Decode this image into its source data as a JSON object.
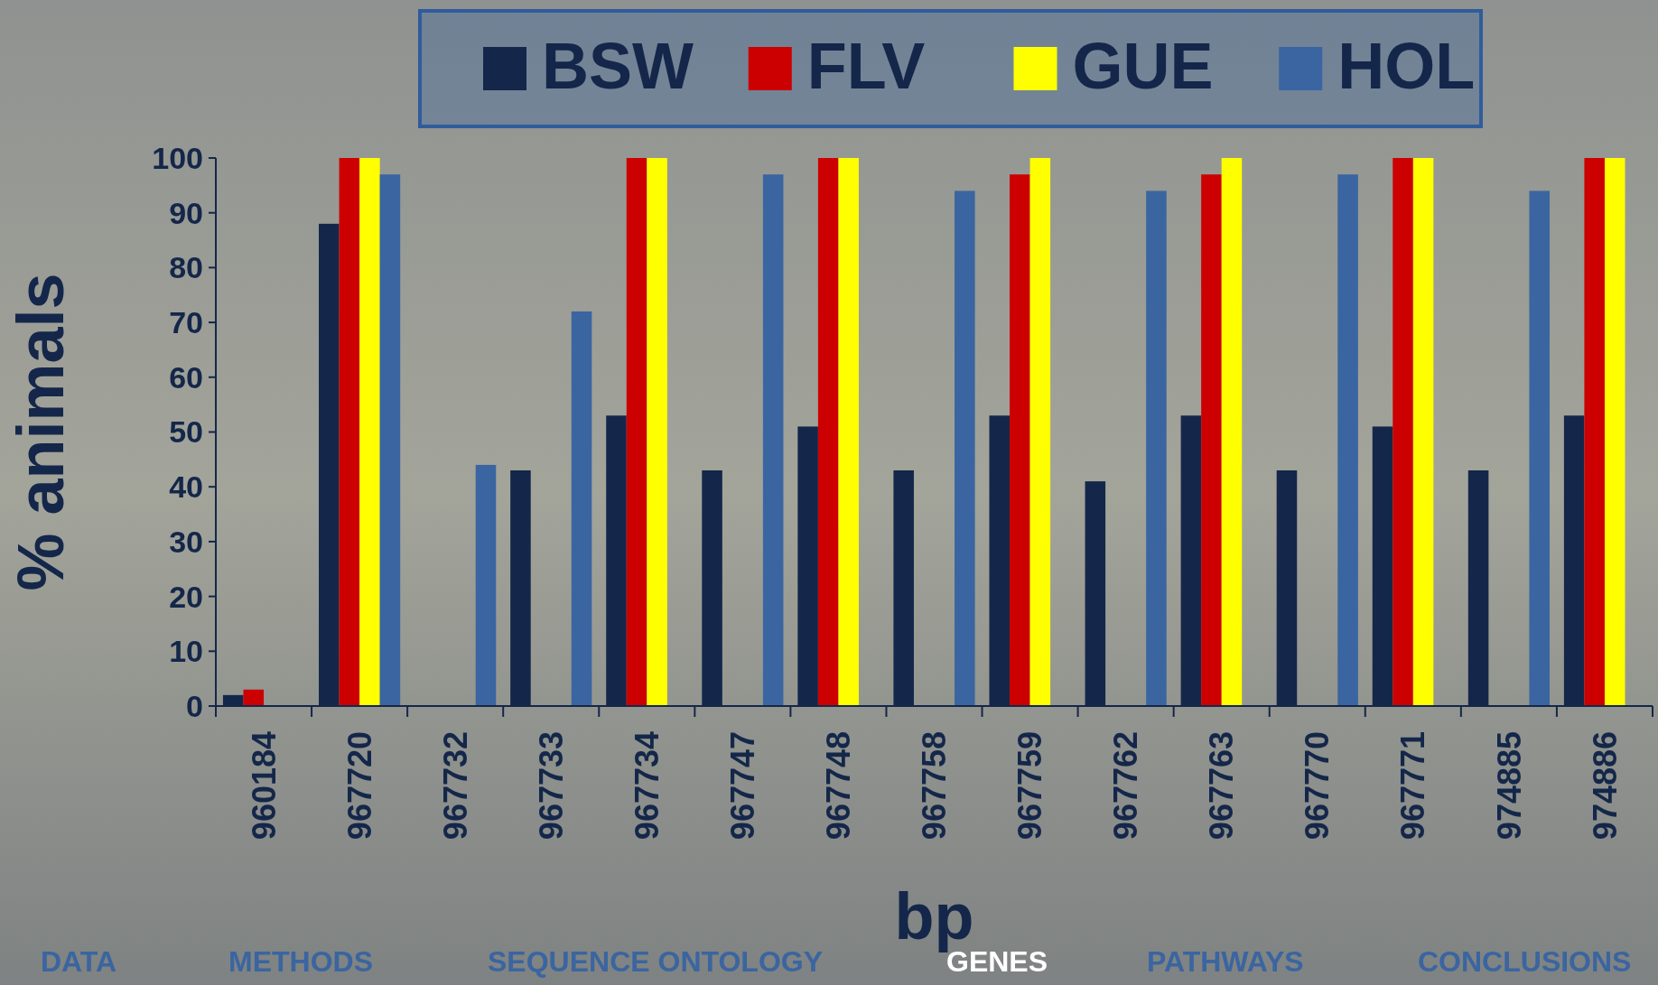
{
  "chart_data": {
    "type": "bar",
    "xlabel": "bp",
    "ylabel": "% animals",
    "categories": [
      "960184",
      "967720",
      "967732",
      "967733",
      "967734",
      "967747",
      "967748",
      "967758",
      "967759",
      "967762",
      "967763",
      "967770",
      "967771",
      "974885",
      "974886"
    ],
    "series": [
      {
        "name": "BSW",
        "color": "#14274a",
        "values": [
          2,
          88,
          0,
          43,
          53,
          43,
          51,
          43,
          53,
          41,
          53,
          43,
          51,
          43,
          53
        ]
      },
      {
        "name": "FLV",
        "color": "#cc0000",
        "values": [
          3,
          100,
          0,
          0,
          100,
          0,
          100,
          0,
          97,
          0,
          97,
          0,
          100,
          0,
          100
        ]
      },
      {
        "name": "GUE",
        "color": "#ffff00",
        "values": [
          0,
          100,
          0,
          0,
          100,
          0,
          100,
          0,
          100,
          0,
          100,
          0,
          100,
          0,
          100
        ]
      },
      {
        "name": "HOL",
        "color": "#3a65a0",
        "values": [
          0,
          97,
          44,
          72,
          0,
          97,
          0,
          94,
          0,
          94,
          0,
          97,
          0,
          94,
          0
        ]
      }
    ],
    "ylim": [
      0,
      100
    ],
    "yticks": [
      0,
      10,
      20,
      30,
      40,
      50,
      60,
      70,
      80,
      90,
      100
    ],
    "grid": false,
    "legend": "top",
    "annotations": [
      "DATA",
      "METHODS",
      "SEQUENCE ONTOLOGY",
      "GENES",
      "PATHWAYS",
      "CONCLUSIONS"
    ]
  }
}
